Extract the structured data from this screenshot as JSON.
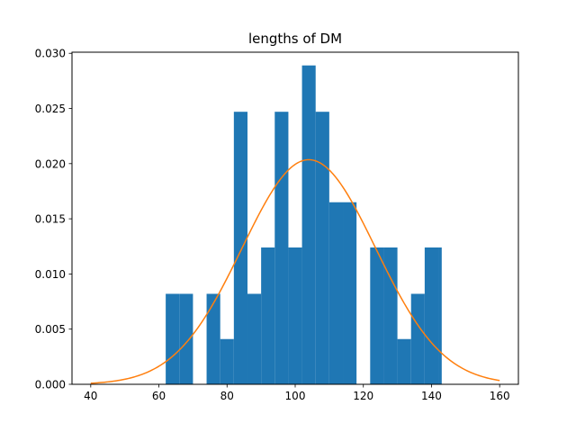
{
  "chart_data": {
    "type": "bar",
    "title": "lengths of DM",
    "xlabel": "",
    "ylabel": "",
    "xlim": [
      34.5,
      165.5
    ],
    "ylim": [
      0,
      0.0301
    ],
    "xticks": [
      40,
      60,
      80,
      100,
      120,
      140,
      160
    ],
    "xtick_labels": [
      "40",
      "60",
      "80",
      "100",
      "120",
      "140",
      "160"
    ],
    "yticks": [
      0,
      0.005,
      0.01,
      0.015,
      0.02,
      0.025,
      0.03
    ],
    "ytick_labels": [
      "0.000",
      "0.005",
      "0.010",
      "0.015",
      "0.020",
      "0.025",
      "0.030"
    ],
    "grid": false,
    "series": [
      {
        "kind": "histogram",
        "color": "#1f77b4",
        "bin_edges": [
          62,
          66,
          70,
          74,
          78,
          82,
          86,
          90,
          94,
          98,
          102,
          106,
          110,
          114,
          118,
          122,
          126,
          130,
          134,
          138,
          142,
          143
        ],
        "values": [
          0.0082,
          0.0082,
          0,
          0.0082,
          0.0041,
          0.0247,
          0.0082,
          0.0124,
          0.0247,
          0.0124,
          0.0289,
          0.0247,
          0.0165,
          0.0165,
          0,
          0.0124,
          0.0124,
          0.0041,
          0.0082,
          0.0124,
          0.0124
        ]
      },
      {
        "kind": "line",
        "color": "#ff7f0e",
        "curve": "normal_pdf",
        "mean": 104,
        "std": 19.6,
        "x_range": [
          40,
          160
        ]
      }
    ]
  }
}
